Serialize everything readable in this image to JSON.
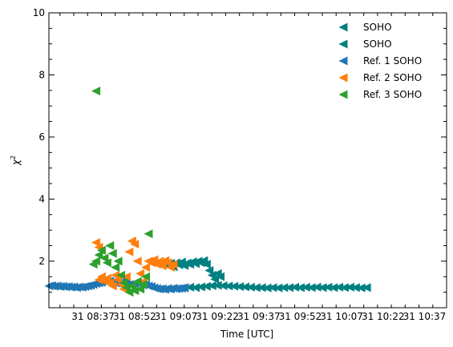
{
  "chart_data": {
    "type": "scatter",
    "xlabel": "Time [UTC]",
    "ylabel": "χ",
    "ylabel_sup": "2",
    "xlim": [
      "08:21",
      "10:45"
    ],
    "ylim": [
      0.5,
      10
    ],
    "xticks": [
      {
        "t": "08:37",
        "label": "31 08:37"
      },
      {
        "t": "08:52",
        "label": "31 08:52"
      },
      {
        "t": "09:07",
        "label": "31 09:07"
      },
      {
        "t": "09:22",
        "label": "31 09:22"
      },
      {
        "t": "09:37",
        "label": "31 09:37"
      },
      {
        "t": "09:52",
        "label": "31 09:52"
      },
      {
        "t": "10:07",
        "label": "31 10:07"
      },
      {
        "t": "10:22",
        "label": "31 10:22"
      },
      {
        "t": "10:37",
        "label": "31 10:37"
      }
    ],
    "yticks": [
      2,
      4,
      6,
      8,
      10
    ],
    "legend_position": "top-right",
    "grid": false,
    "marker": "triangle-left",
    "series": [
      {
        "name": "SOHO",
        "color": "#008080",
        "points": [
          [
            "09:02",
            1.89
          ],
          [
            "09:03",
            1.96
          ],
          [
            "09:04",
            1.85
          ],
          [
            "09:05",
            1.93
          ],
          [
            "09:06",
            1.82
          ],
          [
            "09:07",
            1.95
          ],
          [
            "09:08",
            1.88
          ],
          [
            "09:09",
            1.97
          ],
          [
            "09:10",
            1.86
          ],
          [
            "09:11",
            1.94
          ],
          [
            "09:12",
            1.9
          ],
          [
            "09:13",
            1.98
          ],
          [
            "09:14",
            1.92
          ],
          [
            "09:15",
            2.0
          ],
          [
            "09:16",
            1.95
          ],
          [
            "09:17",
            2.02
          ],
          [
            "09:18",
            1.9
          ],
          [
            "09:19",
            1.7
          ],
          [
            "09:20",
            1.55
          ],
          [
            "09:21",
            1.42
          ],
          [
            "09:22",
            1.6
          ],
          [
            "09:23",
            1.5
          ]
        ]
      },
      {
        "name": "SOHO",
        "color": "#008080",
        "points": [
          [
            "09:10",
            1.14
          ],
          [
            "09:12",
            1.16
          ],
          [
            "09:14",
            1.15
          ],
          [
            "09:16",
            1.17
          ],
          [
            "09:18",
            1.19
          ],
          [
            "09:20",
            1.21
          ],
          [
            "09:22",
            1.22
          ],
          [
            "09:24",
            1.21
          ],
          [
            "09:26",
            1.2
          ],
          [
            "09:28",
            1.19
          ],
          [
            "09:30",
            1.18
          ],
          [
            "09:32",
            1.17
          ],
          [
            "09:34",
            1.16
          ],
          [
            "09:36",
            1.15
          ],
          [
            "09:38",
            1.15
          ],
          [
            "09:40",
            1.14
          ],
          [
            "09:42",
            1.15
          ],
          [
            "09:44",
            1.14
          ],
          [
            "09:46",
            1.15
          ],
          [
            "09:48",
            1.15
          ],
          [
            "09:50",
            1.16
          ],
          [
            "09:52",
            1.15
          ],
          [
            "09:54",
            1.16
          ],
          [
            "09:56",
            1.15
          ],
          [
            "09:58",
            1.16
          ],
          [
            "10:00",
            1.15
          ],
          [
            "10:02",
            1.16
          ],
          [
            "10:04",
            1.15
          ],
          [
            "10:06",
            1.16
          ],
          [
            "10:08",
            1.15
          ],
          [
            "10:10",
            1.16
          ],
          [
            "10:12",
            1.15
          ],
          [
            "10:14",
            1.14
          ],
          [
            "10:16",
            1.15
          ]
        ]
      },
      {
        "name": "Ref. 1 SOHO",
        "color": "#1f77b4",
        "points": [
          [
            "08:21",
            1.2
          ],
          [
            "08:22",
            1.21
          ],
          [
            "08:23",
            1.19
          ],
          [
            "08:24",
            1.2
          ],
          [
            "08:25",
            1.18
          ],
          [
            "08:26",
            1.19
          ],
          [
            "08:27",
            1.17
          ],
          [
            "08:28",
            1.18
          ],
          [
            "08:29",
            1.16
          ],
          [
            "08:30",
            1.17
          ],
          [
            "08:31",
            1.15
          ],
          [
            "08:32",
            1.17
          ],
          [
            "08:33",
            1.16
          ],
          [
            "08:34",
            1.18
          ],
          [
            "08:35",
            1.2
          ],
          [
            "08:36",
            1.22
          ],
          [
            "08:37",
            1.25
          ],
          [
            "08:38",
            1.28
          ],
          [
            "08:39",
            1.3
          ],
          [
            "08:40",
            1.32
          ],
          [
            "08:41",
            1.35
          ],
          [
            "08:42",
            1.38
          ],
          [
            "08:43",
            1.36
          ],
          [
            "08:44",
            1.33
          ],
          [
            "08:45",
            1.3
          ],
          [
            "08:46",
            1.28
          ],
          [
            "08:47",
            1.32
          ],
          [
            "08:48",
            1.35
          ],
          [
            "08:49",
            1.3
          ],
          [
            "08:50",
            1.25
          ],
          [
            "08:51",
            1.22
          ],
          [
            "08:52",
            1.27
          ],
          [
            "08:53",
            1.3
          ],
          [
            "08:54",
            1.26
          ],
          [
            "08:55",
            1.23
          ],
          [
            "08:56",
            1.25
          ],
          [
            "08:57",
            1.2
          ],
          [
            "08:58",
            1.18
          ],
          [
            "08:59",
            1.14
          ],
          [
            "09:00",
            1.12
          ],
          [
            "09:01",
            1.1
          ],
          [
            "09:02",
            1.11
          ],
          [
            "09:03",
            1.09
          ],
          [
            "09:04",
            1.12
          ],
          [
            "09:05",
            1.1
          ],
          [
            "09:06",
            1.13
          ],
          [
            "09:07",
            1.11
          ],
          [
            "09:08",
            1.12
          ],
          [
            "09:09",
            1.13
          ],
          [
            "09:10",
            1.15
          ]
        ]
      },
      {
        "name": "Ref. 2 SOHO",
        "color": "#ff7f0e",
        "points": [
          [
            "08:38",
            2.6
          ],
          [
            "08:39",
            2.45
          ],
          [
            "08:39",
            1.4
          ],
          [
            "08:40",
            1.5
          ],
          [
            "08:41",
            1.35
          ],
          [
            "08:42",
            1.45
          ],
          [
            "08:43",
            1.3
          ],
          [
            "08:44",
            1.2
          ],
          [
            "08:45",
            1.55
          ],
          [
            "08:46",
            1.4
          ],
          [
            "08:47",
            1.25
          ],
          [
            "08:48",
            1.1
          ],
          [
            "08:49",
            1.5
          ],
          [
            "08:50",
            2.3
          ],
          [
            "08:51",
            2.65
          ],
          [
            "08:52",
            2.55
          ],
          [
            "08:53",
            2.0
          ],
          [
            "08:54",
            1.6
          ],
          [
            "08:55",
            1.35
          ],
          [
            "08:56",
            1.8
          ],
          [
            "08:57",
            2.0
          ],
          [
            "08:58",
            1.95
          ],
          [
            "08:59",
            2.05
          ],
          [
            "09:00",
            1.9
          ],
          [
            "09:01",
            2.0
          ],
          [
            "09:02",
            1.85
          ],
          [
            "09:03",
            2.02
          ],
          [
            "09:04",
            1.95
          ],
          [
            "09:05",
            1.8
          ],
          [
            "09:06",
            1.9
          ]
        ]
      },
      {
        "name": "Ref. 3 SOHO",
        "color": "#2ca02c",
        "points": [
          [
            "08:37",
            1.9
          ],
          [
            "08:38",
            2.0
          ],
          [
            "08:38",
            7.48
          ],
          [
            "08:39",
            2.2
          ],
          [
            "08:40",
            2.35
          ],
          [
            "08:41",
            2.1
          ],
          [
            "08:42",
            1.95
          ],
          [
            "08:43",
            2.5
          ],
          [
            "08:44",
            2.25
          ],
          [
            "08:45",
            1.8
          ],
          [
            "08:46",
            2.0
          ],
          [
            "08:47",
            1.55
          ],
          [
            "08:48",
            1.3
          ],
          [
            "08:49",
            1.15
          ],
          [
            "08:50",
            1.0
          ],
          [
            "08:51",
            1.2
          ],
          [
            "08:52",
            1.05
          ],
          [
            "08:53",
            1.35
          ],
          [
            "08:54",
            1.1
          ],
          [
            "08:55",
            1.25
          ],
          [
            "08:56",
            1.5
          ],
          [
            "08:57",
            2.88
          ]
        ]
      }
    ]
  }
}
